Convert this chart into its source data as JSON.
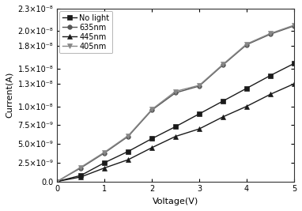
{
  "voltage": [
    0,
    0.5,
    1.0,
    1.5,
    2.0,
    2.5,
    3.0,
    3.5,
    4.0,
    4.5,
    5.0
  ],
  "no_light": [
    0,
    8e-10,
    2.5e-09,
    4e-09,
    5.7e-09,
    7.3e-09,
    9e-09,
    1.07e-08,
    1.24e-08,
    1.41e-08,
    1.57e-08
  ],
  "nm635": [
    0,
    1.8e-09,
    3.8e-09,
    6e-09,
    9.5e-09,
    1.18e-08,
    1.27e-08,
    1.55e-08,
    1.82e-08,
    1.96e-08,
    2.07e-08
  ],
  "nm445": [
    0,
    6e-10,
    1.8e-09,
    2.9e-09,
    4.5e-09,
    6e-09,
    7e-09,
    8.6e-09,
    1e-08,
    1.16e-08,
    1.3e-08
  ],
  "nm405": [
    0,
    1.9e-09,
    3.9e-09,
    6.1e-09,
    9.6e-09,
    1.2e-08,
    1.28e-08,
    1.56e-08,
    1.83e-08,
    1.97e-08,
    2.08e-08
  ],
  "colors": [
    "#1a1a1a",
    "#555555",
    "#1a1a1a",
    "#888888"
  ],
  "markers": [
    "s",
    "o",
    "^",
    "v"
  ],
  "labels": [
    "No light",
    "635nm",
    "445nm",
    "405nm"
  ],
  "xlabel": "Voltage(V)",
  "ylabel": "Current(A)",
  "xlim": [
    0,
    5
  ],
  "ylim": [
    0,
    2.3e-08
  ],
  "ytick_vals": [
    0.0,
    2.5e-09,
    5e-09,
    7.5e-09,
    1e-08,
    1.3e-08,
    1.5e-08,
    1.8e-08,
    2e-08,
    2.3e-08
  ],
  "ytick_labels": [
    "0.0",
    "2.5×10⁻⁹",
    "5.0×10⁻⁹",
    "7.5×10⁻⁹",
    "1.0×10⁻⁸",
    "1.3×10⁻⁸",
    "1.5×10⁻⁸",
    "1.8×10⁻⁸",
    "2.0×10⁻⁸",
    "2.3×10⁻⁸"
  ],
  "xticks": [
    0,
    1,
    2,
    3,
    4,
    5
  ],
  "figsize": [
    3.82,
    2.67
  ],
  "dpi": 100,
  "legend_loc": "upper left",
  "markersize": 4,
  "linewidth": 1.0,
  "fontsize": 8,
  "tick_fontsize": 7
}
